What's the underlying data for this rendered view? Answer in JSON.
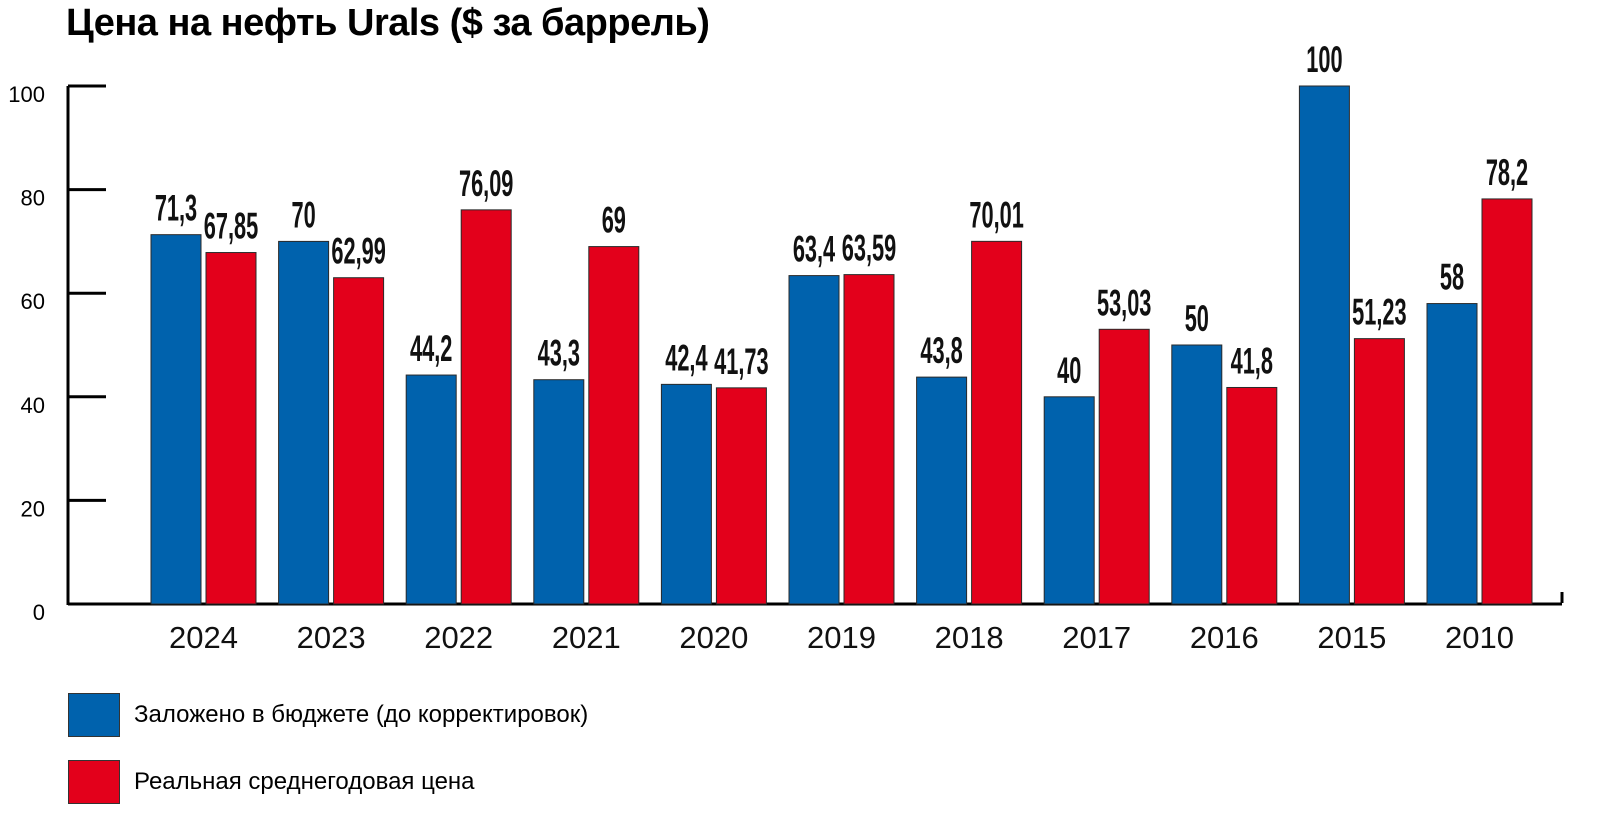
{
  "chart_data": {
    "type": "bar",
    "title": "Цена на нефть Urals ($ за баррель)",
    "categories": [
      "2024",
      "2023",
      "2022",
      "2021",
      "2020",
      "2019",
      "2018",
      "2017",
      "2016",
      "2015",
      "2010"
    ],
    "series": [
      {
        "name": "Заложено в бюджете (до корректировок)",
        "color": "#0062ad",
        "values": [
          71.3,
          70,
          44.2,
          43.3,
          42.4,
          63.4,
          43.8,
          40,
          50,
          100,
          58
        ],
        "labels": [
          "71,3",
          "70",
          "44,2",
          "43,3",
          "42,4",
          "63,4",
          "43,8",
          "40",
          "50",
          "100",
          "58"
        ]
      },
      {
        "name": "Реальная среднегодовая цена",
        "color": "#e3001b",
        "values": [
          67.85,
          62.99,
          76.09,
          69,
          41.73,
          63.59,
          70.01,
          53.03,
          41.8,
          51.23,
          78.2
        ],
        "labels": [
          "67,85",
          "62,99",
          "76,09",
          "69",
          "41,73",
          "63,59",
          "70,01",
          "53,03",
          "41,8",
          "51,23",
          "78,2"
        ]
      }
    ],
    "ylim": [
      0,
      100
    ],
    "yticks": [
      "0",
      "20",
      "40",
      "60",
      "80",
      "100"
    ],
    "xlabel": "",
    "ylabel": "",
    "grid": false,
    "legend": "bottom-left"
  }
}
